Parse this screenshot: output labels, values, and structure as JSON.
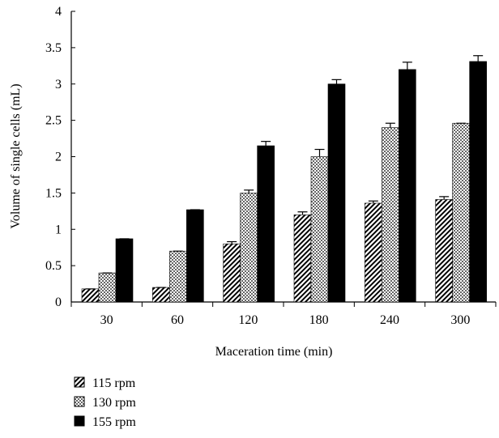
{
  "chart_data": {
    "type": "bar",
    "categories": [
      "30",
      "60",
      "120",
      "180",
      "240",
      "300"
    ],
    "xlabel": "Maceration time (min)",
    "ylabel": "Volume of single cells (mL)",
    "ylim": [
      0,
      4
    ],
    "yticks": [
      "0",
      "0.5",
      "1",
      "1.5",
      "2",
      "2.5",
      "3",
      "3.5",
      "4"
    ],
    "grid": false,
    "legend_position": "bottom-left",
    "series": [
      {
        "name": "115 rpm",
        "pattern": "diagonal-hatch",
        "values": [
          0.18,
          0.2,
          0.8,
          1.2,
          1.36,
          1.41
        ],
        "errors": [
          0,
          0,
          0.03,
          0.04,
          0.03,
          0.04
        ]
      },
      {
        "name": "130 rpm",
        "pattern": "crosshatch",
        "values": [
          0.4,
          0.7,
          1.5,
          2.0,
          2.4,
          2.46
        ],
        "errors": [
          0,
          0,
          0.04,
          0.1,
          0.06,
          0
        ]
      },
      {
        "name": "155 rpm",
        "pattern": "solid",
        "color": "#000000",
        "values": [
          0.87,
          1.27,
          2.15,
          3.0,
          3.2,
          3.31
        ],
        "errors": [
          0,
          0,
          0.06,
          0.06,
          0.1,
          0.08
        ]
      }
    ]
  }
}
